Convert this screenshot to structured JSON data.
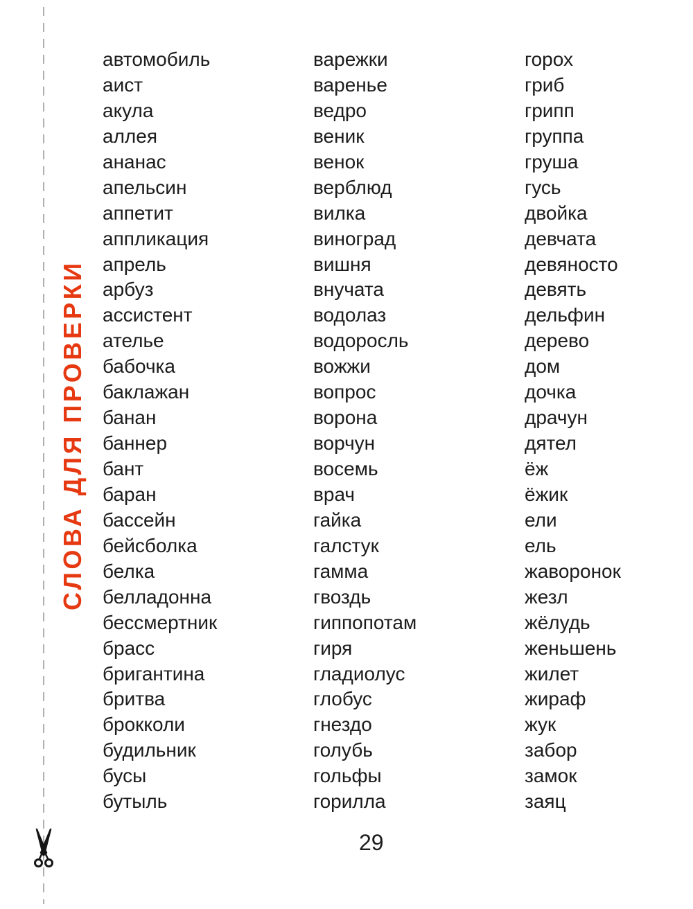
{
  "page": {
    "number": "29",
    "side_label": "СЛОВА ДЛЯ ПРОВЕРКИ",
    "accent_color": "#e63911",
    "text_color": "#1c1c1c"
  },
  "icons": {
    "scissors": "✂"
  },
  "columns": [
    {
      "words": [
        "автомобиль",
        "аист",
        "акула",
        "аллея",
        "ананас",
        "апельсин",
        "аппетит",
        "аппликация",
        "апрель",
        "арбуз",
        "ассистент",
        "ателье",
        "бабочка",
        "баклажан",
        "банан",
        "баннер",
        "бант",
        "баран",
        "бассейн",
        "бейсболка",
        "белка",
        "белладонна",
        "бессмертник",
        "брасс",
        "бригантина",
        "бритва",
        "брокколи",
        "будильник",
        "бусы",
        "бутыль"
      ]
    },
    {
      "words": [
        "варежки",
        "варенье",
        "ведро",
        "веник",
        "венок",
        "верблюд",
        "вилка",
        "виноград",
        "вишня",
        "внучата",
        "водолаз",
        "водоросль",
        "вожжи",
        "вопрос",
        "ворона",
        "ворчун",
        "восемь",
        "врач",
        "гайка",
        "галстук",
        "гамма",
        "гвоздь",
        "гиппопотам",
        "гиря",
        "гладиолус",
        "глобус",
        "гнездо",
        "голубь",
        "гольфы",
        "горилла"
      ]
    },
    {
      "words": [
        "горох",
        "гриб",
        "грипп",
        "группа",
        "груша",
        "гусь",
        "двойка",
        "девчата",
        "девяносто",
        "девять",
        "дельфин",
        "дерево",
        "дом",
        "дочка",
        "драчун",
        "дятел",
        "ёж",
        "ёжик",
        "ели",
        "ель",
        "жаворонок",
        "жезл",
        "жёлудь",
        "женьшень",
        "жилет",
        "жираф",
        "жук",
        "забор",
        "замок",
        "заяц"
      ]
    }
  ]
}
